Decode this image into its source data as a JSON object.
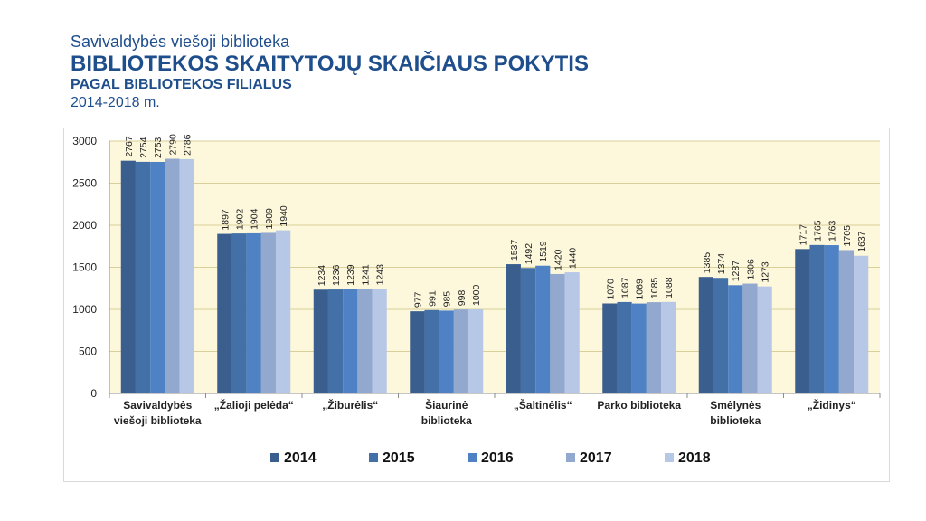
{
  "header": {
    "line1": "Savivaldybės viešoji biblioteka",
    "line2": "BIBLIOTEKOS SKAITYTOJŲ SKAIČIAUS POKYTIS",
    "line3": "PAGAL BIBLIOTEKOS FILIALUS",
    "line4": "2014-2018 m."
  },
  "chart_data": {
    "type": "bar",
    "title": "",
    "xlabel": "",
    "ylabel": "",
    "ylim": [
      0,
      3000
    ],
    "yticks": [
      0,
      500,
      1000,
      1500,
      2000,
      2500,
      3000
    ],
    "grid": true,
    "legend_position": "bottom",
    "categories": [
      [
        "Savivaldybės",
        "viešoji biblioteka"
      ],
      [
        "„Žalioji pelėda“"
      ],
      [
        "„Žiburėlis“"
      ],
      [
        "Šiaurinė",
        "biblioteka"
      ],
      [
        "„Šaltinėlis“"
      ],
      [
        "Parko biblioteka"
      ],
      [
        "Smėlynės",
        "biblioteka"
      ],
      [
        "„Židinys“"
      ]
    ],
    "series": [
      {
        "name": "2014",
        "color": "#3a5f8f",
        "values": [
          2767,
          1897,
          1234,
          977,
          1537,
          1070,
          1385,
          1717
        ]
      },
      {
        "name": "2015",
        "color": "#4470a8",
        "values": [
          2754,
          1902,
          1236,
          991,
          1492,
          1087,
          1374,
          1765
        ]
      },
      {
        "name": "2016",
        "color": "#4e82c4",
        "values": [
          2753,
          1904,
          1239,
          985,
          1519,
          1069,
          1287,
          1763
        ]
      },
      {
        "name": "2017",
        "color": "#93a8cf",
        "values": [
          2790,
          1909,
          1241,
          998,
          1420,
          1085,
          1306,
          1705
        ]
      },
      {
        "name": "2018",
        "color": "#b7c7e6",
        "values": [
          2786,
          1940,
          1243,
          1000,
          1440,
          1088,
          1273,
          1637
        ]
      }
    ],
    "plot_background": "#fdf8dc",
    "gridline_color": "#d9cf9a"
  }
}
